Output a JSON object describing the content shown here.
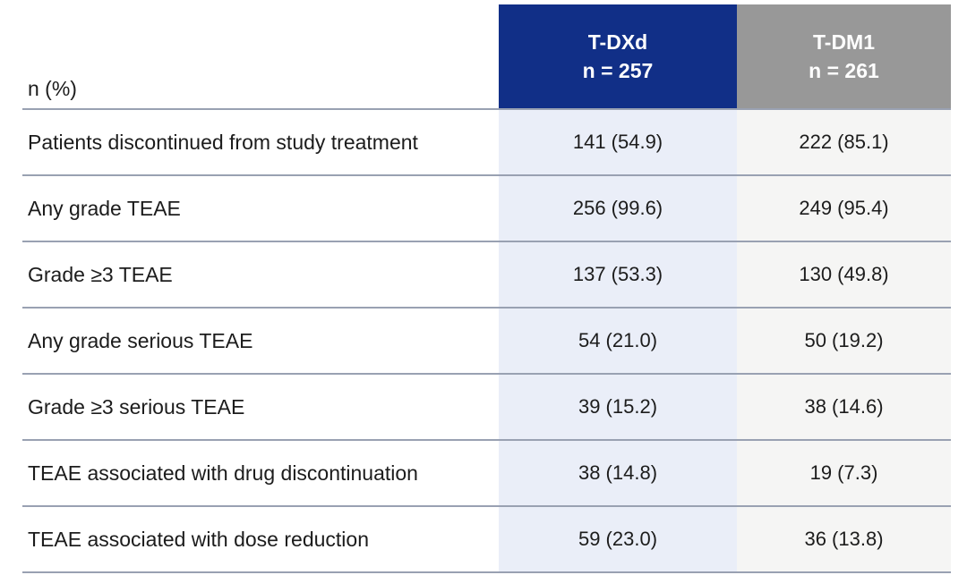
{
  "colors": {
    "navy": "#112f87",
    "gray": "#989898",
    "lightblue": "#eaeef8",
    "lightgray": "#f5f5f4",
    "line": "#99a1b2",
    "text": "#1c1c1c"
  },
  "table": {
    "corner_label": "n (%)",
    "columns": [
      {
        "label": "T-DXd",
        "sublabel": "n = 257"
      },
      {
        "label": "T-DM1",
        "sublabel": "n = 261"
      }
    ],
    "rows": [
      {
        "label": "Patients discontinued from study treatment",
        "tdxd": "141 (54.9)",
        "tdm1": "222 (85.1)"
      },
      {
        "label": "Any grade TEAE",
        "tdxd": "256 (99.6)",
        "tdm1": "249 (95.4)"
      },
      {
        "label": "Grade ≥3 TEAE",
        "tdxd": "137 (53.3)",
        "tdm1": "130 (49.8)"
      },
      {
        "label": "Any grade serious TEAE",
        "tdxd": "54 (21.0)",
        "tdm1": "50 (19.2)"
      },
      {
        "label": "Grade ≥3 serious TEAE",
        "tdxd": "39 (15.2)",
        "tdm1": "38 (14.6)"
      },
      {
        "label": "TEAE associated with drug discontinuation",
        "tdxd": "38 (14.8)",
        "tdm1": "19 (7.3)"
      },
      {
        "label": "TEAE associated with dose reduction",
        "tdxd": "59 (23.0)",
        "tdm1": "36 (13.8)"
      }
    ]
  }
}
